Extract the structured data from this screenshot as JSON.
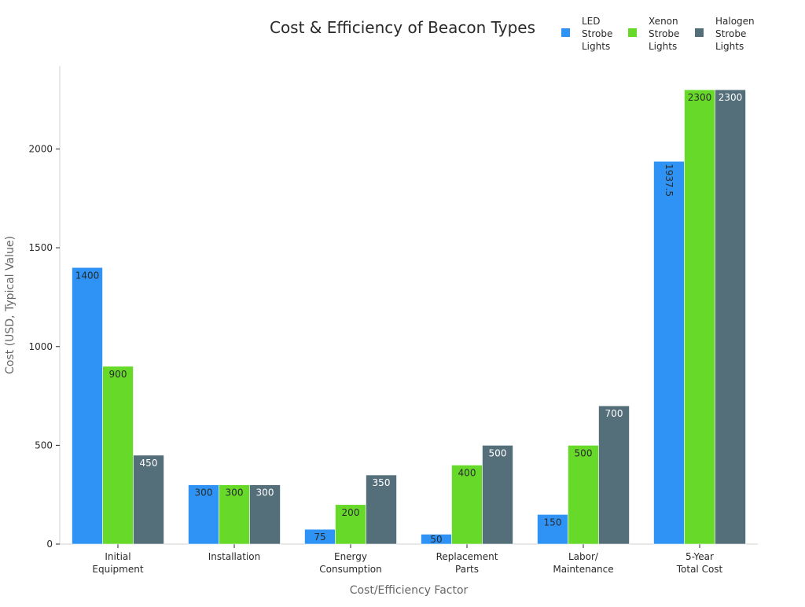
{
  "chart_data": {
    "type": "bar",
    "title": "Cost & Efficiency of Beacon Types",
    "xlabel": "Cost/Efficiency Factor",
    "ylabel": "Cost (USD, Typical Value)",
    "categories": [
      [
        "Initial",
        "Equipment"
      ],
      [
        "Installation"
      ],
      [
        "Energy",
        "Consumption"
      ],
      [
        "Replacement",
        "Parts"
      ],
      [
        "Labor/",
        "Maintenance"
      ],
      [
        "5-Year",
        "Total Cost"
      ]
    ],
    "series": [
      {
        "name": [
          "LED",
          "Strobe",
          "Lights"
        ],
        "color": "#2E93F5",
        "label_color": "#2a2a2a",
        "values": [
          1400,
          300,
          75,
          50,
          150,
          1937.5
        ]
      },
      {
        "name": [
          "Xenon",
          "Strobe",
          "Lights"
        ],
        "color": "#66D929",
        "label_color": "#2a2a2a",
        "values": [
          900,
          300,
          200,
          400,
          500,
          2300
        ]
      },
      {
        "name": [
          "Halogen",
          "Strobe",
          "Lights"
        ],
        "color": "#546E7A",
        "label_color": "#ffffff",
        "values": [
          450,
          300,
          350,
          500,
          700,
          2300
        ]
      }
    ],
    "ylim": [
      0,
      2420
    ],
    "yticks": [
      0,
      500,
      1000,
      1500,
      2000
    ],
    "grid": false,
    "legend_position": "top-right",
    "data_labels": true
  }
}
